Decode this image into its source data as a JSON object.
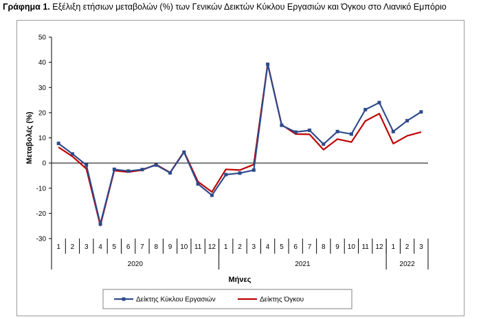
{
  "title_prefix": "Γράφημα 1.",
  "title_text": "Εξέλιξη ετήσιων μεταβολών (%) των Γενικών Δεικτών Κύκλου Εργασιών και Όγκου στο Λιανικό Εμπόριο",
  "chart_data": {
    "type": "line",
    "title": "Εξέλιξη ετήσιων μεταβολών (%) των Γενικών Δεικτών Κύκλου Εργασιών και Όγκου στο Λιανικό Εμπόριο",
    "xlabel": "Μήνες",
    "ylabel": "Μεταβολές (%)",
    "ylim": [
      -30,
      50
    ],
    "yticks": [
      -30,
      -20,
      -10,
      0,
      10,
      20,
      30,
      40,
      50
    ],
    "grid": false,
    "legend_position": "bottom",
    "x": [
      "1",
      "2",
      "3",
      "4",
      "5",
      "6",
      "7",
      "8",
      "9",
      "10",
      "11",
      "12",
      "1",
      "2",
      "3",
      "4",
      "5",
      "6",
      "7",
      "8",
      "9",
      "10",
      "11",
      "12",
      "1",
      "2",
      "3"
    ],
    "year_groups": [
      {
        "label": "2020",
        "count": 12
      },
      {
        "label": "2021",
        "count": 12
      },
      {
        "label": "2022",
        "count": 3
      }
    ],
    "series": [
      {
        "name": "Δείκτης Κύκλου Εργασιών",
        "color": "#2e4b8b",
        "marker": "square",
        "values": [
          7.8,
          3.6,
          -0.8,
          -24.2,
          -2.5,
          -3.2,
          -2.6,
          -0.8,
          -3.9,
          4.3,
          -8.3,
          -12.8,
          -4.6,
          -4.0,
          -2.8,
          39.2,
          15.0,
          12.3,
          13.0,
          7.5,
          12.5,
          11.5,
          21.2,
          24.0,
          12.5,
          16.8,
          20.3
        ]
      },
      {
        "name": "Δείκτης Όγκου",
        "color": "#c00000",
        "marker": "none",
        "values": [
          6.3,
          2.6,
          -2.3,
          -24.8,
          -3.0,
          -3.6,
          -2.8,
          -0.6,
          -3.8,
          4.5,
          -7.4,
          -11.5,
          -2.5,
          -2.8,
          -0.6,
          39.5,
          15.2,
          11.5,
          11.4,
          5.3,
          9.5,
          8.3,
          16.7,
          19.6,
          7.7,
          10.8,
          12.3
        ]
      }
    ]
  }
}
